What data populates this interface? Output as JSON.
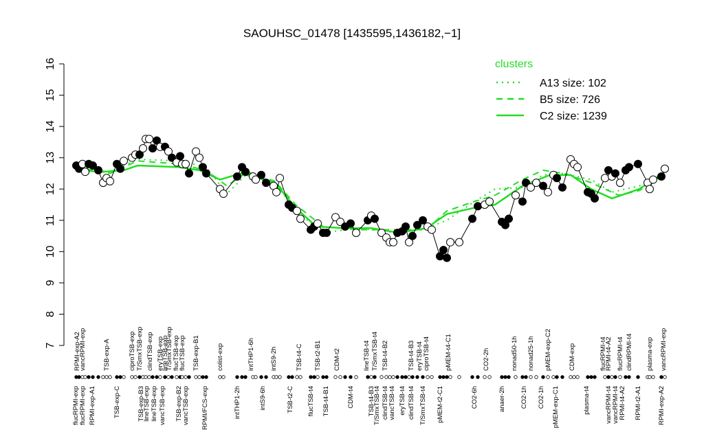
{
  "chart_data": {
    "type": "scatter",
    "title": "SAOUHSC_01478 [1435595,1436182,−1]",
    "ylim": [
      7,
      16
    ],
    "yticks": [
      7,
      8,
      9,
      10,
      11,
      12,
      13,
      14,
      15,
      16
    ],
    "xlim": [
      0,
      865
    ],
    "legend_title": "clusters",
    "legend_position": "top-right",
    "x": [
      4,
      8,
      13,
      17,
      22,
      28,
      36,
      43,
      48,
      53,
      63,
      68,
      73,
      85,
      90,
      96,
      101,
      105,
      110,
      115,
      121,
      126,
      133,
      138,
      143,
      150,
      155,
      158,
      163,
      168,
      178,
      183,
      188,
      193,
      213,
      218,
      238,
      245,
      250,
      261,
      265,
      273,
      280,
      291,
      295,
      300,
      313,
      318,
      325,
      330,
      345,
      350,
      355,
      363,
      368,
      381,
      388,
      395,
      403,
      411,
      428,
      433,
      438,
      448,
      455,
      460,
      465,
      471,
      478,
      483,
      488,
      493,
      500,
      508,
      515,
      521,
      533,
      538,
      543,
      548,
      561,
      580,
      588,
      598,
      605,
      623,
      628,
      633,
      643,
      653,
      658,
      665,
      673,
      683,
      690,
      698,
      703,
      711,
      723,
      728,
      733,
      748,
      753,
      758,
      773,
      778,
      783,
      788,
      795,
      803,
      808,
      821,
      835,
      838,
      843,
      855,
      860
    ],
    "values": [
      12.75,
      12.65,
      12.8,
      12.55,
      12.8,
      12.75,
      12.6,
      12.2,
      12.35,
      12.25,
      12.8,
      12.65,
      12.9,
      13.0,
      13.1,
      13.1,
      13.3,
      13.6,
      13.6,
      13.3,
      13.55,
      13.35,
      13.35,
      13.2,
      13.0,
      12.85,
      13.05,
      12.8,
      12.8,
      12.5,
      13.2,
      13.0,
      12.7,
      12.5,
      12.0,
      11.85,
      12.4,
      12.7,
      12.55,
      12.4,
      12.3,
      12.45,
      12.2,
      12.1,
      11.9,
      12.35,
      11.5,
      11.4,
      11.3,
      11.05,
      10.7,
      10.8,
      10.9,
      10.6,
      10.6,
      11.1,
      10.95,
      10.8,
      10.9,
      10.6,
      11.0,
      11.15,
      11.05,
      10.6,
      10.45,
      10.3,
      10.3,
      10.6,
      10.65,
      10.8,
      10.3,
      10.5,
      10.85,
      11.0,
      10.8,
      10.7,
      9.85,
      10.05,
      9.8,
      10.3,
      10.3,
      11.05,
      11.45,
      11.5,
      11.6,
      10.95,
      10.85,
      11.05,
      11.8,
      11.6,
      12.2,
      12.05,
      12.2,
      12.1,
      11.9,
      12.45,
      12.35,
      12.05,
      12.95,
      12.8,
      12.7,
      11.9,
      11.85,
      11.7,
      12.35,
      12.6,
      12.4,
      12.5,
      12.2,
      12.6,
      12.7,
      12.8,
      12.2,
      12.0,
      12.3,
      12.4,
      12.65
    ],
    "marker_colors": [
      "black",
      "black",
      "white",
      "white",
      "black",
      "black",
      "black",
      "white",
      "white",
      "white",
      "black",
      "black",
      "white",
      "white",
      "white",
      "black",
      "white",
      "white",
      "white",
      "black",
      "black",
      "white",
      "black",
      "white",
      "black",
      "white",
      "black",
      "white",
      "white",
      "black",
      "white",
      "white",
      "black",
      "black",
      "white",
      "white",
      "black",
      "black",
      "black",
      "white",
      "white",
      "black",
      "black",
      "white",
      "white",
      "white",
      "black",
      "black",
      "white",
      "white",
      "black",
      "black",
      "white",
      "black",
      "black",
      "white",
      "white",
      "black",
      "black",
      "white",
      "black",
      "white",
      "black",
      "white",
      "white",
      "white",
      "white",
      "black",
      "black",
      "black",
      "white",
      "black",
      "black",
      "black",
      "white",
      "white",
      "black",
      "black",
      "black",
      "white",
      "white",
      "black",
      "black",
      "white",
      "white",
      "black",
      "black",
      "black",
      "white",
      "black",
      "black",
      "white",
      "white",
      "black",
      "white",
      "white",
      "black",
      "black",
      "white",
      "white",
      "white",
      "black",
      "black",
      "black",
      "white",
      "black",
      "white",
      "black",
      "white",
      "black",
      "black",
      "black",
      "white",
      "white",
      "white",
      "black",
      "white"
    ],
    "series": [
      {
        "name": "A13 size: 102",
        "color": "#22dd22",
        "dash": "dotted",
        "x": [
          3,
          53,
          93,
          153,
          193,
          223,
          253,
          293,
          323,
          363,
          413,
          473,
          513,
          543,
          583,
          613,
          653,
          683,
          713,
          753,
          783,
          823,
          860
        ],
        "values": [
          12.7,
          12.55,
          12.95,
          12.9,
          12.7,
          11.85,
          12.5,
          12.2,
          11.3,
          10.6,
          10.75,
          10.6,
          10.75,
          11.0,
          11.6,
          12.0,
          12.05,
          12.45,
          12.5,
          12.3,
          11.9,
          12.1,
          12.55
        ]
      },
      {
        "name": "B5 size: 726",
        "color": "#22dd22",
        "dash": "dashed",
        "x": [
          3,
          53,
          93,
          153,
          193,
          223,
          253,
          293,
          323,
          363,
          413,
          473,
          513,
          543,
          583,
          613,
          653,
          683,
          713,
          753,
          793,
          823,
          860
        ],
        "values": [
          12.7,
          12.5,
          12.9,
          12.8,
          12.6,
          12.1,
          12.55,
          12.25,
          11.5,
          10.8,
          10.7,
          10.7,
          10.7,
          11.3,
          11.6,
          11.8,
          12.3,
          12.6,
          12.5,
          12.2,
          11.8,
          11.95,
          12.5
        ]
      },
      {
        "name": "C2 size: 1239",
        "color": "#22dd22",
        "dash": "solid",
        "x": [
          3,
          43,
          73,
          93,
          153,
          183,
          213,
          243,
          293,
          323,
          353,
          393,
          433,
          473,
          513,
          543,
          583,
          613,
          653,
          693,
          723,
          753,
          783,
          823,
          860
        ],
        "values": [
          12.6,
          12.55,
          12.6,
          12.75,
          12.7,
          12.6,
          12.3,
          12.5,
          12.2,
          11.4,
          10.8,
          10.75,
          10.75,
          10.6,
          10.75,
          11.2,
          11.4,
          11.5,
          12.1,
          12.45,
          12.45,
          12.0,
          11.7,
          12.0,
          12.55
        ]
      }
    ],
    "top_labels": [
      {
        "x": 5,
        "label": "RPMI-exp-A2"
      },
      {
        "x": 13,
        "label": "vancRPMI-exp"
      },
      {
        "x": 48,
        "label": "TSB-exp-A"
      },
      {
        "x": 85,
        "label": "ciproTSB-exp"
      },
      {
        "x": 96,
        "label": "T/SmxTSB-exp"
      },
      {
        "x": 111,
        "label": "clindTSB-exp"
      },
      {
        "x": 126,
        "label": "eryTSB-exp"
      },
      {
        "x": 133,
        "label": "lineTSB-exp"
      },
      {
        "x": 139,
        "label": "T/SmxTSB-exp"
      },
      {
        "x": 149,
        "label": "flucTSB-exp"
      },
      {
        "x": 158,
        "label": "flucTSB-exp"
      },
      {
        "x": 178,
        "label": "TSB-exp-B1"
      },
      {
        "x": 213,
        "label": "colist-exp"
      },
      {
        "x": 258,
        "label": "intTHP1-6h"
      },
      {
        "x": 291,
        "label": "intS9-2h"
      },
      {
        "x": 328,
        "label": "TSB-t4-C"
      },
      {
        "x": 355,
        "label": "TSB-t2-B1"
      },
      {
        "x": 383,
        "label": "CDM-t2"
      },
      {
        "x": 426,
        "label": "lineTSB-t4"
      },
      {
        "x": 438,
        "label": "T/SmxTSB-t4"
      },
      {
        "x": 453,
        "label": "TSB-t4-B2"
      },
      {
        "x": 491,
        "label": "TSB-t4-B3"
      },
      {
        "x": 503,
        "label": "eryTSB-t4"
      },
      {
        "x": 513,
        "label": "ciproTSB-t4"
      },
      {
        "x": 545,
        "label": "pMEM-t4-C1"
      },
      {
        "x": 600,
        "label": "CO2-2h"
      },
      {
        "x": 641,
        "label": "nonad50-1h"
      },
      {
        "x": 665,
        "label": "nonad25-1h"
      },
      {
        "x": 690,
        "label": "pMEM-exp-C2"
      },
      {
        "x": 725,
        "label": "CDM-exp"
      },
      {
        "x": 770,
        "label": "flucRPMI-t4"
      },
      {
        "x": 778,
        "label": "RPMI-t4-A2"
      },
      {
        "x": 795,
        "label": "flucRPMI-t4"
      },
      {
        "x": 808,
        "label": "clindRPMI-t4"
      },
      {
        "x": 838,
        "label": "plasma-exp"
      },
      {
        "x": 858,
        "label": "vancRPMI-exp"
      }
    ],
    "bottom_labels": [
      {
        "x": 3,
        "label": "flucRPMI-exp"
      },
      {
        "x": 13,
        "label": "flucRPMI-exp"
      },
      {
        "x": 27,
        "label": "RPMI-exp-A1"
      },
      {
        "x": 63,
        "label": "TSB-exp-C"
      },
      {
        "x": 98,
        "label": "TSB-exp-B3"
      },
      {
        "x": 106,
        "label": "lineTSB-exp"
      },
      {
        "x": 117,
        "label": "lineTSB-exp"
      },
      {
        "x": 129,
        "label": "vancTSB-exp"
      },
      {
        "x": 153,
        "label": "TSB-exp-B2"
      },
      {
        "x": 163,
        "label": "vancTSB-exp"
      },
      {
        "x": 191,
        "label": "RPMI/FCS-exp"
      },
      {
        "x": 238,
        "label": "intTHP1-2h"
      },
      {
        "x": 275,
        "label": "intS9-6h"
      },
      {
        "x": 315,
        "label": "TSB-t2-C"
      },
      {
        "x": 345,
        "label": "flucTSB-t4"
      },
      {
        "x": 367,
        "label": "TSB-t4-B1"
      },
      {
        "x": 403,
        "label": "CDM-t4"
      },
      {
        "x": 433,
        "label": "TSB-t4-B3"
      },
      {
        "x": 441,
        "label": "T/SmxTSB-t4"
      },
      {
        "x": 453,
        "label": "clindTSB-t4"
      },
      {
        "x": 463,
        "label": "vancTSB-t4"
      },
      {
        "x": 478,
        "label": "eryTSB-t4"
      },
      {
        "x": 491,
        "label": "clindTSB-t4"
      },
      {
        "x": 508,
        "label": "T/SmxTSB-t4"
      },
      {
        "x": 533,
        "label": "pMEM-t2-C1"
      },
      {
        "x": 583,
        "label": "CO2-6h"
      },
      {
        "x": 623,
        "label": "anaer-2h"
      },
      {
        "x": 655,
        "label": "CO2-1h"
      },
      {
        "x": 680,
        "label": "CO2-1h"
      },
      {
        "x": 701,
        "label": "pMEM-exp-C1"
      },
      {
        "x": 746,
        "label": "plasma-t4"
      },
      {
        "x": 778,
        "label": "vancRPMI-t4"
      },
      {
        "x": 788,
        "label": "vancRPMI-t4"
      },
      {
        "x": 798,
        "label": "RPMI-t4-A2"
      },
      {
        "x": 821,
        "label": "RPMI-t2-A1"
      },
      {
        "x": 855,
        "label": "RPMI-exp-A2"
      }
    ]
  }
}
